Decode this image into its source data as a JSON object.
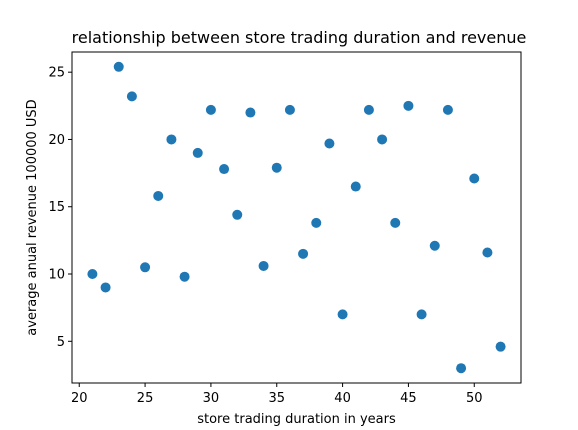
{
  "chart_data": {
    "type": "scatter",
    "title": "relationship between store trading duration and revenue",
    "xlabel": "store trading duration in years",
    "ylabel": "average anual revenue 100000 USD",
    "xlim": [
      19.45,
      53.55
    ],
    "ylim": [
      1.9,
      26.5
    ],
    "xticks": [
      20,
      25,
      30,
      35,
      40,
      45,
      50
    ],
    "yticks": [
      5,
      10,
      15,
      20,
      25
    ],
    "grid": false,
    "color": "#1f77b4",
    "points": [
      {
        "x": 21,
        "y": 10.0
      },
      {
        "x": 22,
        "y": 9.0
      },
      {
        "x": 23,
        "y": 25.4
      },
      {
        "x": 24,
        "y": 23.2
      },
      {
        "x": 25,
        "y": 10.5
      },
      {
        "x": 26,
        "y": 15.8
      },
      {
        "x": 27,
        "y": 20.0
      },
      {
        "x": 28,
        "y": 9.8
      },
      {
        "x": 29,
        "y": 19.0
      },
      {
        "x": 30,
        "y": 22.2
      },
      {
        "x": 31,
        "y": 17.8
      },
      {
        "x": 32,
        "y": 14.4
      },
      {
        "x": 33,
        "y": 22.0
      },
      {
        "x": 34,
        "y": 10.6
      },
      {
        "x": 35,
        "y": 17.9
      },
      {
        "x": 36,
        "y": 22.2
      },
      {
        "x": 37,
        "y": 11.5
      },
      {
        "x": 38,
        "y": 13.8
      },
      {
        "x": 39,
        "y": 19.7
      },
      {
        "x": 40,
        "y": 7.0
      },
      {
        "x": 41,
        "y": 16.5
      },
      {
        "x": 42,
        "y": 22.2
      },
      {
        "x": 43,
        "y": 20.0
      },
      {
        "x": 44,
        "y": 13.8
      },
      {
        "x": 45,
        "y": 22.5
      },
      {
        "x": 46,
        "y": 7.0
      },
      {
        "x": 47,
        "y": 12.1
      },
      {
        "x": 48,
        "y": 22.2
      },
      {
        "x": 49,
        "y": 3.0
      },
      {
        "x": 50,
        "y": 17.1
      },
      {
        "x": 51,
        "y": 11.6
      },
      {
        "x": 52,
        "y": 4.6
      }
    ]
  }
}
